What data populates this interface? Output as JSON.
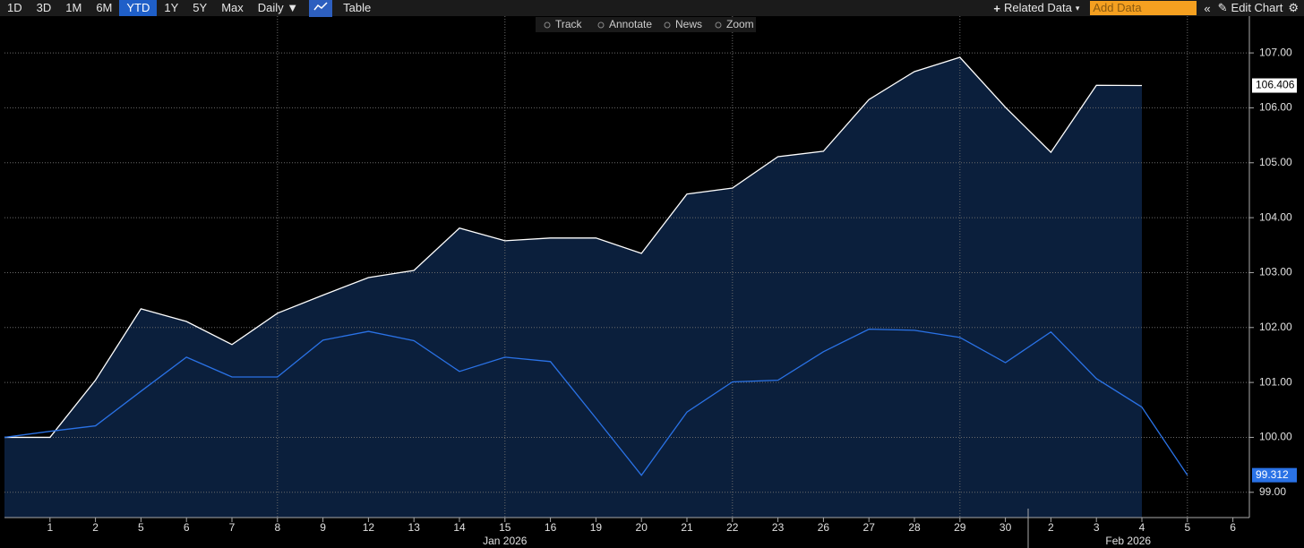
{
  "toolbar": {
    "ranges": [
      "1D",
      "3D",
      "1M",
      "6M",
      "YTD",
      "1Y",
      "5Y",
      "Max"
    ],
    "active_range": "YTD",
    "frequency": "Daily ▼",
    "table": "Table",
    "related": "Related Data",
    "add_data": "Add Data",
    "edit": "Edit Chart",
    "tools": [
      "Track",
      "Annotate",
      "News",
      "Zoom"
    ]
  },
  "chart_data": {
    "type": "line",
    "categories": [
      null,
      "1",
      "2",
      "5",
      "6",
      "7",
      "8",
      "9",
      "12",
      "13",
      "14",
      "15",
      "16",
      "19",
      "20",
      "21",
      "22",
      "23",
      "26",
      "27",
      "28",
      "29",
      "30",
      "2",
      "3",
      "4",
      "5",
      "6"
    ],
    "month_labels": [
      {
        "index": 11,
        "label": "Jan 2026"
      },
      {
        "index": 24.7,
        "label": "Feb 2026"
      }
    ],
    "series": [
      {
        "color": "#ffffff",
        "fill": "#0b1f3c",
        "values": [
          100.0,
          100.0,
          101.04,
          102.34,
          102.11,
          101.69,
          102.26,
          102.59,
          102.91,
          103.04,
          103.81,
          103.58,
          103.63,
          103.63,
          103.35,
          104.43,
          104.54,
          105.11,
          105.21,
          106.15,
          106.66,
          106.92,
          106.01,
          105.19,
          106.41,
          106.406,
          null,
          null
        ]
      },
      {
        "color": "#2a72e6",
        "values": [
          100.0,
          100.11,
          100.21,
          100.84,
          101.46,
          101.1,
          101.1,
          101.77,
          101.93,
          101.76,
          101.2,
          101.46,
          101.38,
          100.35,
          99.31,
          100.46,
          101.01,
          101.04,
          101.56,
          101.97,
          101.95,
          101.82,
          101.36,
          101.92,
          101.07,
          100.55,
          99.312,
          null
        ]
      }
    ],
    "ylim": [
      98.54,
      107.67
    ],
    "yticks": [
      {
        "value": 99,
        "label": "99.00"
      },
      {
        "value": 100,
        "label": "100.00"
      },
      {
        "value": 101,
        "label": "101.00"
      },
      {
        "value": 102,
        "label": "102.00"
      },
      {
        "value": 103,
        "label": "103.00"
      },
      {
        "value": 104,
        "label": "104.00"
      },
      {
        "value": 105,
        "label": "105.00"
      },
      {
        "value": 106,
        "label": "106.00"
      },
      {
        "value": 107,
        "label": "107.00"
      }
    ],
    "grid": true
  }
}
